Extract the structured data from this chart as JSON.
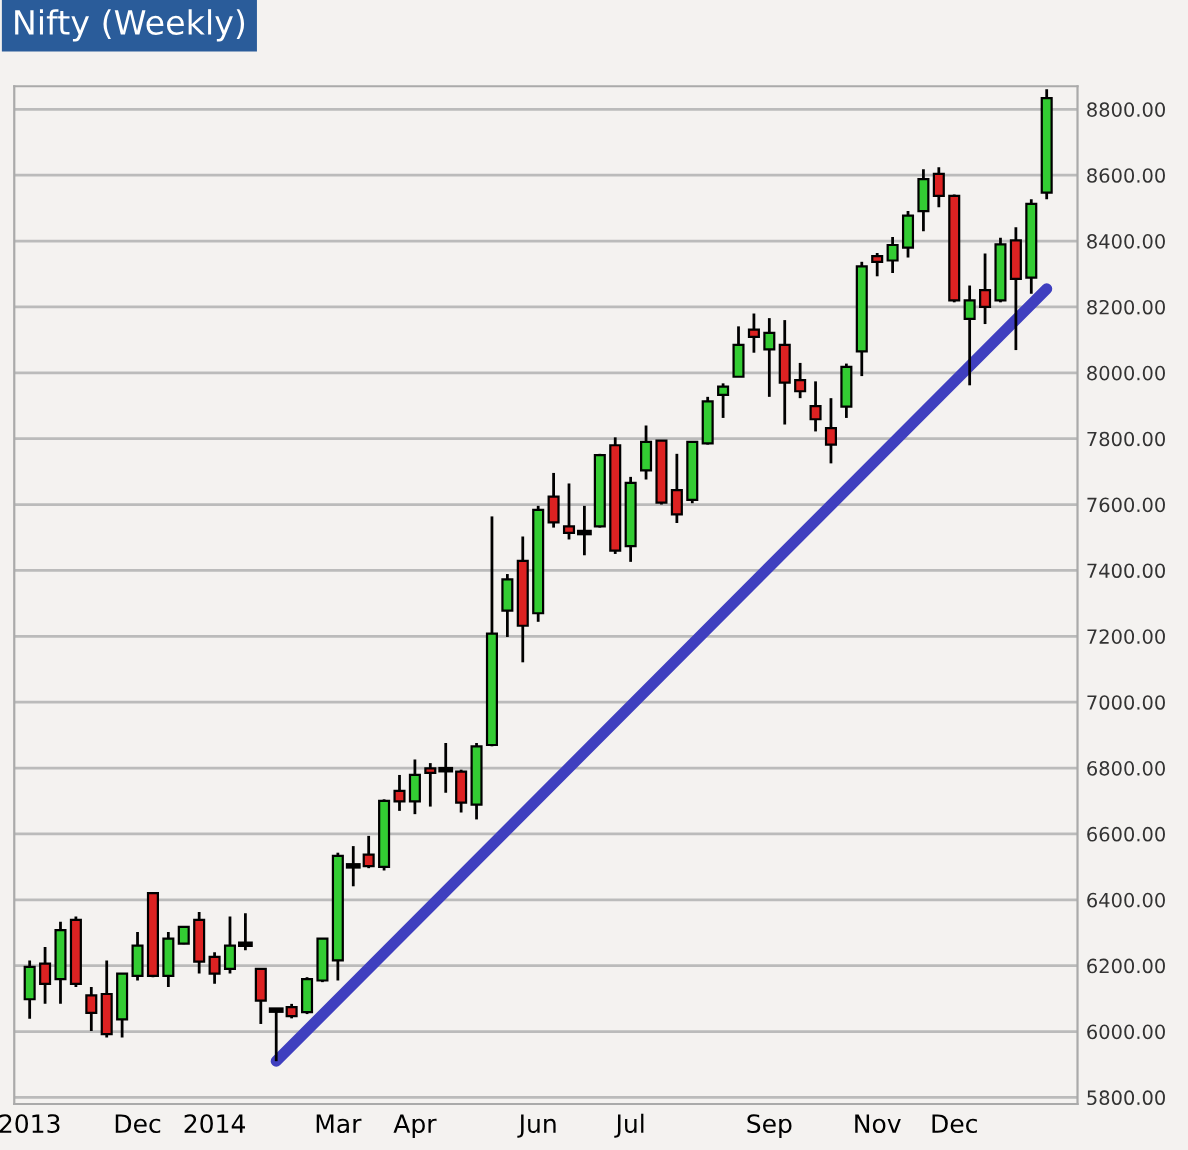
{
  "chart_data": {
    "type": "candlestick",
    "title": "Nifty (Weekly)",
    "categories": [
      "2013",
      null,
      null,
      null,
      null,
      null,
      null,
      "Dec",
      null,
      null,
      null,
      null,
      "2014",
      null,
      null,
      null,
      null,
      null,
      null,
      null,
      "Mar",
      null,
      null,
      null,
      null,
      "Apr",
      null,
      null,
      null,
      null,
      null,
      null,
      null,
      "Jun",
      null,
      null,
      null,
      null,
      null,
      "Jul",
      null,
      null,
      null,
      null,
      null,
      null,
      null,
      null,
      "Sep",
      null,
      null,
      null,
      null,
      null,
      null,
      "Nov",
      null,
      null,
      null,
      null,
      "Dec",
      null,
      null,
      null,
      null,
      null,
      null
    ],
    "ohlc": [
      [
        6098,
        6216,
        6039,
        6196
      ],
      [
        6206,
        6257,
        6084,
        6145
      ],
      [
        6159,
        6333,
        6084,
        6308
      ],
      [
        6339,
        6349,
        6135,
        6145
      ],
      [
        6110,
        6135,
        6002,
        6057
      ],
      [
        6114,
        6216,
        5982,
        5992
      ],
      [
        6037,
        6176,
        5982,
        6176
      ],
      [
        6169,
        6302,
        6155,
        6261
      ],
      [
        6420,
        6420,
        6165,
        6169
      ],
      [
        6169,
        6302,
        6135,
        6282
      ],
      [
        6267,
        6320,
        6265,
        6318
      ],
      [
        6339,
        6363,
        6176,
        6212
      ],
      [
        6227,
        6241,
        6145,
        6176
      ],
      [
        6190,
        6349,
        6176,
        6261
      ],
      [
        6265,
        6359,
        6247,
        6265
      ],
      [
        6190,
        6190,
        6023,
        6094
      ],
      [
        6065,
        6067,
        5910,
        6065
      ],
      [
        6074,
        6084,
        6040,
        6047
      ],
      [
        6059,
        6165,
        6053,
        6159
      ],
      [
        6155,
        6282,
        6150,
        6282
      ],
      [
        6216,
        6543,
        6155,
        6533
      ],
      [
        6503,
        6563,
        6441,
        6503
      ],
      [
        6537,
        6594,
        6496,
        6502
      ],
      [
        6500,
        6705,
        6489,
        6700
      ],
      [
        6731,
        6779,
        6670,
        6699
      ],
      [
        6699,
        6826,
        6660,
        6779
      ],
      [
        6799,
        6815,
        6683,
        6785
      ],
      [
        6795,
        6876,
        6725,
        6795
      ],
      [
        6789,
        6795,
        6665,
        6695
      ],
      [
        6689,
        6876,
        6644,
        6866
      ],
      [
        6870,
        7564,
        6866,
        7208
      ],
      [
        7278,
        7389,
        7198,
        7373
      ],
      [
        7429,
        7503,
        7121,
        7232
      ],
      [
        7270,
        7596,
        7244,
        7584
      ],
      [
        7624,
        7696,
        7530,
        7546
      ],
      [
        7534,
        7664,
        7494,
        7514
      ],
      [
        7515,
        7596,
        7446,
        7515
      ],
      [
        7534,
        7754,
        7530,
        7750
      ],
      [
        7780,
        7804,
        7450,
        7460
      ],
      [
        7474,
        7684,
        7426,
        7666
      ],
      [
        7704,
        7840,
        7676,
        7790
      ],
      [
        7794,
        7794,
        7600,
        7606
      ],
      [
        7644,
        7754,
        7544,
        7570
      ],
      [
        7614,
        7792,
        7604,
        7790
      ],
      [
        7786,
        7927,
        7782,
        7913
      ],
      [
        7933,
        7968,
        7863,
        7958
      ],
      [
        7988,
        8141,
        7988,
        8085
      ],
      [
        8131,
        8180,
        8061,
        8109
      ],
      [
        8071,
        8166,
        7927,
        8121
      ],
      [
        8085,
        8160,
        7843,
        7970
      ],
      [
        7978,
        8030,
        7923,
        7944
      ],
      [
        7899,
        7974,
        7822,
        7859
      ],
      [
        7832,
        7923,
        7725,
        7782
      ],
      [
        7897,
        8028,
        7863,
        8018
      ],
      [
        8065,
        8337,
        7990,
        8323
      ],
      [
        8354,
        8364,
        8293,
        8337
      ],
      [
        8341,
        8412,
        8303,
        8388
      ],
      [
        8380,
        8491,
        8350,
        8477
      ],
      [
        8491,
        8618,
        8430,
        8588
      ],
      [
        8604,
        8624,
        8503,
        8537
      ],
      [
        8537,
        8541,
        8214,
        8220
      ],
      [
        8164,
        8265,
        7962,
        8220
      ],
      [
        8251,
        8362,
        8148,
        8200
      ],
      [
        8220,
        8410,
        8214,
        8390
      ],
      [
        8402,
        8442,
        8069,
        8285
      ],
      [
        8289,
        8527,
        8240,
        8513
      ],
      [
        8547,
        8861,
        8527,
        8834
      ]
    ],
    "colors": [
      "#33cc33",
      "#dd2222",
      "#33cc33",
      "#dd2222",
      "#dd2222",
      "#dd2222",
      "#33cc33",
      "#33cc33",
      "#dd2222",
      "#33cc33",
      "#33cc33",
      "#dd2222",
      "#dd2222",
      "#33cc33",
      "#000000",
      "#dd2222",
      "#000000",
      "#dd2222",
      "#33cc33",
      "#33cc33",
      "#33cc33",
      "#000000",
      "#dd2222",
      "#33cc33",
      "#dd2222",
      "#33cc33",
      "#dd2222",
      "#000000",
      "#dd2222",
      "#33cc33",
      "#33cc33",
      "#33cc33",
      "#dd2222",
      "#33cc33",
      "#dd2222",
      "#dd2222",
      "#000000",
      "#33cc33",
      "#dd2222",
      "#33cc33",
      "#33cc33",
      "#dd2222",
      "#dd2222",
      "#33cc33",
      "#33cc33",
      "#33cc33",
      "#33cc33",
      "#dd2222",
      "#33cc33",
      "#dd2222",
      "#dd2222",
      "#dd2222",
      "#dd2222",
      "#33cc33",
      "#33cc33",
      "#dd2222",
      "#33cc33",
      "#33cc33",
      "#33cc33",
      "#dd2222",
      "#dd2222",
      "#33cc33",
      "#dd2222",
      "#33cc33",
      "#dd2222",
      "#33cc33",
      "#33cc33"
    ],
    "series": [
      {
        "type": "line",
        "color": "#3f3fbf",
        "values": [
          null,
          null,
          null,
          null,
          null,
          null,
          null,
          null,
          null,
          null,
          null,
          null,
          null,
          null,
          null,
          null,
          5910,
          null,
          null,
          null,
          null,
          null,
          null,
          null,
          null,
          null,
          null,
          null,
          null,
          null,
          null,
          null,
          null,
          null,
          null,
          null,
          null,
          null,
          null,
          null,
          null,
          null,
          null,
          null,
          null,
          null,
          null,
          null,
          null,
          null,
          null,
          null,
          null,
          null,
          null,
          null,
          null,
          null,
          null,
          null,
          null,
          null,
          null,
          null,
          null,
          null,
          8255
        ]
      }
    ],
    "ylim": [
      5780,
      8870
    ],
    "yticks": [
      {
        "value": 5800,
        "label": "5800.00"
      },
      {
        "value": 6000,
        "label": "6000.00"
      },
      {
        "value": 6200,
        "label": "6200.00"
      },
      {
        "value": 6400,
        "label": "6400.00"
      },
      {
        "value": 6600,
        "label": "6600.00"
      },
      {
        "value": 6800,
        "label": "6800.00"
      },
      {
        "value": 7000,
        "label": "7000.00"
      },
      {
        "value": 7200,
        "label": "7200.00"
      },
      {
        "value": 7400,
        "label": "7400.00"
      },
      {
        "value": 7600,
        "label": "7600.00"
      },
      {
        "value": 7800,
        "label": "7800.00"
      },
      {
        "value": 8000,
        "label": "8000.00"
      },
      {
        "value": 8200,
        "label": "8200.00"
      },
      {
        "value": 8400,
        "label": "8400.00"
      },
      {
        "value": 8600,
        "label": "8600.00"
      },
      {
        "value": 8800,
        "label": "8800.00"
      }
    ],
    "grid": "y"
  }
}
